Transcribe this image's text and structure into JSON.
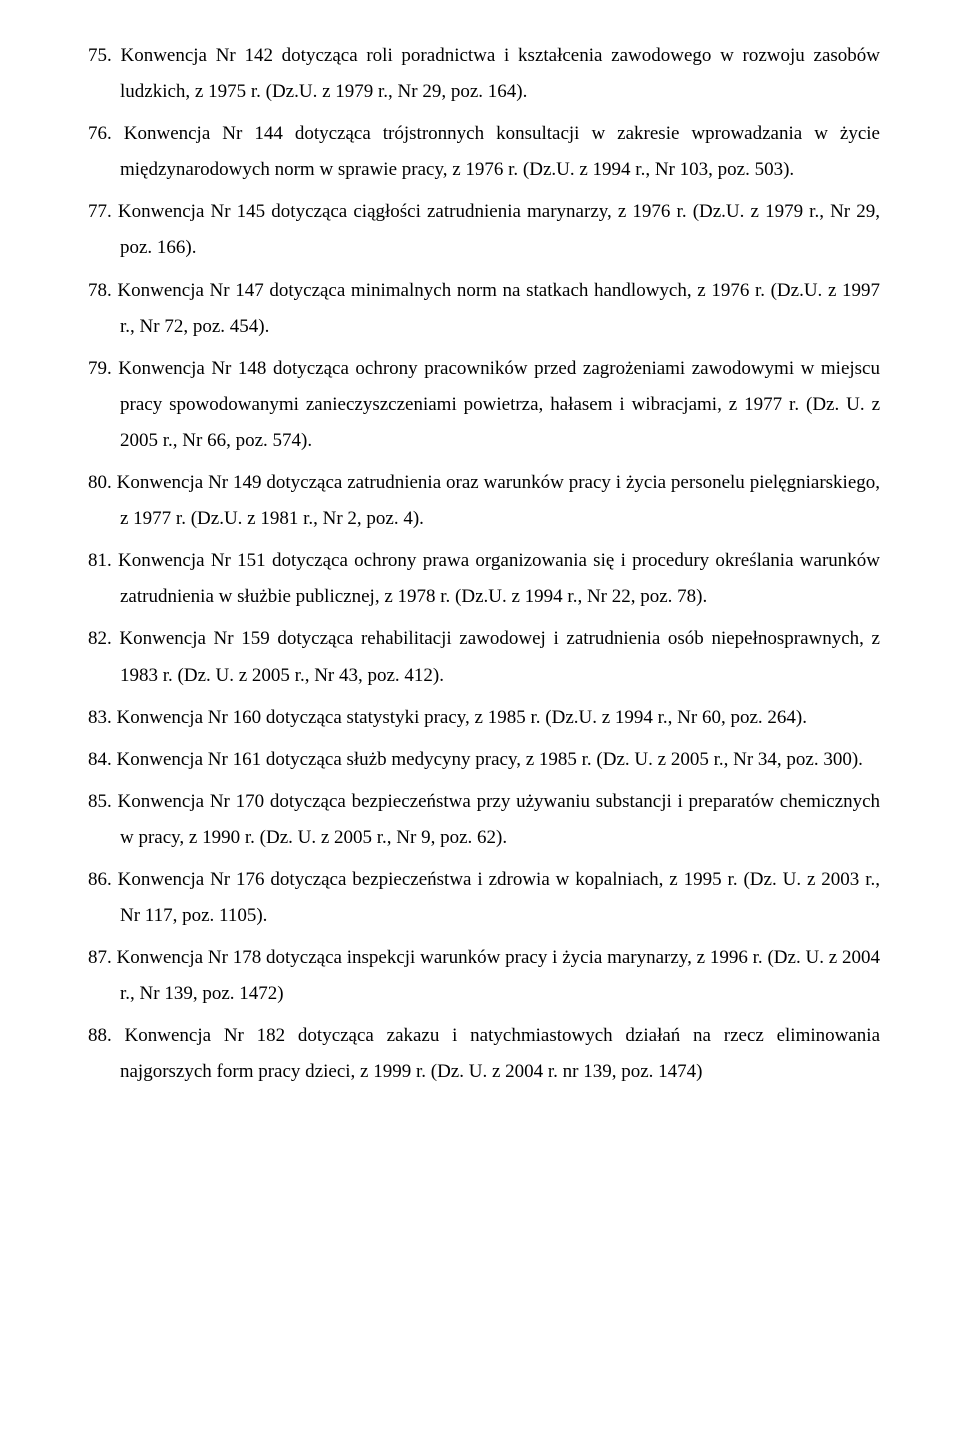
{
  "items": [
    {
      "num": "75.",
      "text": "Konwencja Nr 142 dotycząca roli poradnictwa i kształcenia zawodowego w rozwoju zasobów ludzkich, z 1975 r. (Dz.U. z 1979 r., Nr 29, poz. 164)."
    },
    {
      "num": "76.",
      "text": "Konwencja Nr 144 dotycząca trójstronnych konsultacji w zakresie wprowadzania w życie międzynarodowych norm w sprawie pracy, z 1976 r. (Dz.U. z 1994 r., Nr 103, poz. 503)."
    },
    {
      "num": "77.",
      "text": "Konwencja Nr 145 dotycząca ciągłości zatrudnienia marynarzy, z 1976 r. (Dz.U. z 1979 r., Nr 29, poz. 166)."
    },
    {
      "num": "78.",
      "text": "Konwencja Nr 147 dotycząca minimalnych norm na statkach handlowych, z 1976 r. (Dz.U. z 1997 r., Nr 72, poz. 454)."
    },
    {
      "num": "79.",
      "text": "Konwencja Nr 148 dotycząca ochrony pracowników przed zagrożeniami zawodowymi w miejscu pracy spowodowanymi zanieczyszczeniami powietrza, hałasem i wibracjami, z 1977 r. (Dz. U. z 2005 r., Nr 66, poz. 574)."
    },
    {
      "num": "80.",
      "text": "Konwencja Nr 149 dotycząca zatrudnienia oraz warunków pracy i życia personelu pielęgniarskiego, z 1977 r. (Dz.U. z 1981 r., Nr 2, poz. 4)."
    },
    {
      "num": "81.",
      "text": "Konwencja Nr 151 dotycząca ochrony prawa organizowania się i procedury określania warunków zatrudnienia w służbie publicznej, z 1978 r. (Dz.U. z 1994 r., Nr 22, poz. 78)."
    },
    {
      "num": "82.",
      "text": "Konwencja Nr 159 dotycząca rehabilitacji zawodowej i zatrudnienia osób niepełnosprawnych, z 1983 r. (Dz. U. z 2005 r., Nr 43, poz. 412)."
    },
    {
      "num": "83.",
      "text": "Konwencja Nr 160 dotycząca statystyki pracy, z 1985 r. (Dz.U. z 1994 r., Nr 60, poz. 264)."
    },
    {
      "num": "84.",
      "text": "Konwencja Nr 161 dotycząca służb medycyny pracy, z 1985 r. (Dz. U. z 2005 r., Nr 34, poz. 300)."
    },
    {
      "num": "85.",
      "text": "Konwencja Nr 170 dotycząca bezpieczeństwa przy używaniu substancji i preparatów chemicznych w pracy, z 1990 r. (Dz. U. z 2005 r., Nr 9, poz. 62)."
    },
    {
      "num": "86.",
      "text": "Konwencja Nr 176 dotycząca bezpieczeństwa i zdrowia w kopalniach, z 1995 r. (Dz. U. z 2003 r., Nr 117, poz. 1105)."
    },
    {
      "num": "87.",
      "text": "Konwencja Nr 178 dotycząca inspekcji warunków pracy i życia marynarzy, z 1996 r. (Dz. U. z 2004 r., Nr 139, poz. 1472)"
    },
    {
      "num": "88.",
      "text": "Konwencja Nr 182 dotycząca zakazu i natychmiastowych działań na rzecz eliminowania najgorszych form pracy dzieci, z 1999 r. (Dz. U. z 2004 r. nr 139, poz. 1474)"
    }
  ]
}
